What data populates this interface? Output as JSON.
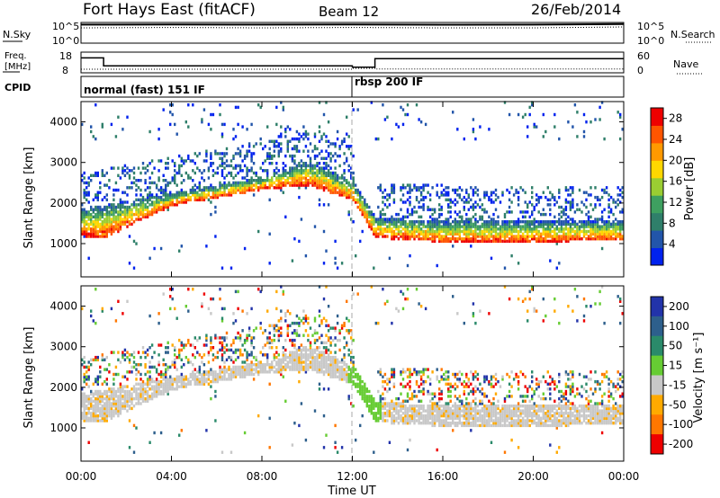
{
  "header": {
    "station": "Fort Hays East (fitACF)",
    "beam": "Beam 12",
    "date": "26/Feb/2014"
  },
  "top_panels": {
    "nsky_label": "N.Sky",
    "nsearch_label": "N.Search",
    "nsky_ticks": [
      "10^5",
      "10^0"
    ],
    "nsearch_ticks": [
      "10^5",
      "10^0"
    ],
    "freq_label_1": "Freq.",
    "freq_label_2": "[MHz]",
    "freq_ticks": [
      "18",
      "8"
    ],
    "nave_label": "Nave",
    "nave_ticks": [
      "60",
      "0"
    ],
    "cpid_label": "CPID",
    "cpid_1": "normal (fast) 151 IF",
    "cpid_2": "rbsp 200 IF"
  },
  "x_axis": {
    "label": "Time UT",
    "ticks": [
      "00:00",
      "04:00",
      "08:00",
      "12:00",
      "16:00",
      "20:00",
      "00:00"
    ]
  },
  "y_axis": {
    "label": "Slant Range [km]",
    "ticks": [
      "1000",
      "2000",
      "3000",
      "4000"
    ]
  },
  "power_scale": {
    "label": "Power [dB]",
    "ticks": [
      "4",
      "8",
      "12",
      "16",
      "20",
      "24",
      "28"
    ],
    "colors": [
      "#0022ee",
      "#2255aa",
      "#2f7f6a",
      "#3ea060",
      "#9acd32",
      "#ffd700",
      "#ff9900",
      "#ff5500",
      "#ee0000"
    ]
  },
  "velocity_scale": {
    "label": "Velocity [m s⁻¹]",
    "ticks": [
      "200",
      "100",
      "50",
      "15",
      "-15",
      "-50",
      "-100",
      "-200"
    ],
    "colors": [
      "#2233aa",
      "#2d5f8c",
      "#2a8a6a",
      "#66cc33",
      "#c8c8c8",
      "#ffaa00",
      "#ff7700",
      "#ee0000"
    ]
  },
  "chart_data": [
    {
      "type": "line",
      "title": "N.Sky / N.Search",
      "x": [
        "00:00",
        "04:00",
        "08:00",
        "12:00",
        "16:00",
        "20:00",
        "24:00"
      ],
      "series": [
        {
          "name": "N.Sky",
          "values": [
            30000,
            32000,
            30000,
            34000,
            29000,
            30000,
            40000
          ]
        },
        {
          "name": "N.Search",
          "values": [
            5000,
            6000,
            5000,
            6000,
            5000,
            5000,
            8000
          ]
        }
      ]
    },
    {
      "type": "line",
      "title": "Freq. [MHz] / Nave",
      "series": [
        {
          "name": "Freq.",
          "points": [
            [
              "00:00",
              16.5
            ],
            [
              "01:00",
              16.5
            ],
            [
              "01:00",
              11.0
            ],
            [
              "12:00",
              11.0
            ],
            [
              "12:00",
              10.0
            ],
            [
              "13:00",
              10.0
            ],
            [
              "13:00",
              16.0
            ],
            [
              "24:00",
              16.0
            ]
          ]
        },
        {
          "name": "Nave",
          "points": [
            [
              "00:00",
              12
            ],
            [
              "12:00",
              12
            ],
            [
              "12:00",
              15
            ],
            [
              "13:00",
              15
            ],
            [
              "13:00",
              13
            ],
            [
              "24:00",
              13
            ]
          ]
        }
      ]
    },
    {
      "type": "heatmap",
      "title": "Power [dB]",
      "ylabel": "Slant Range [km]",
      "xlabel": "Time UT",
      "ylim": [
        180,
        4500
      ],
      "xlim": [
        0,
        24
      ],
      "clim": [
        0,
        30
      ],
      "ground_scatter_band_km": [
        [
          0,
          1150,
          1800
        ],
        [
          1,
          1100,
          1900
        ],
        [
          4,
          1900,
          2200
        ],
        [
          8,
          2300,
          2600
        ],
        [
          10,
          2400,
          3000
        ],
        [
          12,
          2000,
          2500
        ],
        [
          13,
          1100,
          1600
        ],
        [
          16,
          1000,
          1500
        ],
        [
          20,
          1000,
          1500
        ],
        [
          24,
          1050,
          1500
        ]
      ]
    },
    {
      "type": "heatmap",
      "title": "Velocity [m s⁻¹]",
      "ylabel": "Slant Range [km]",
      "xlabel": "Time UT",
      "ylim": [
        180,
        4500
      ],
      "xlim": [
        0,
        24
      ],
      "clim": [
        -200,
        200
      ]
    }
  ]
}
